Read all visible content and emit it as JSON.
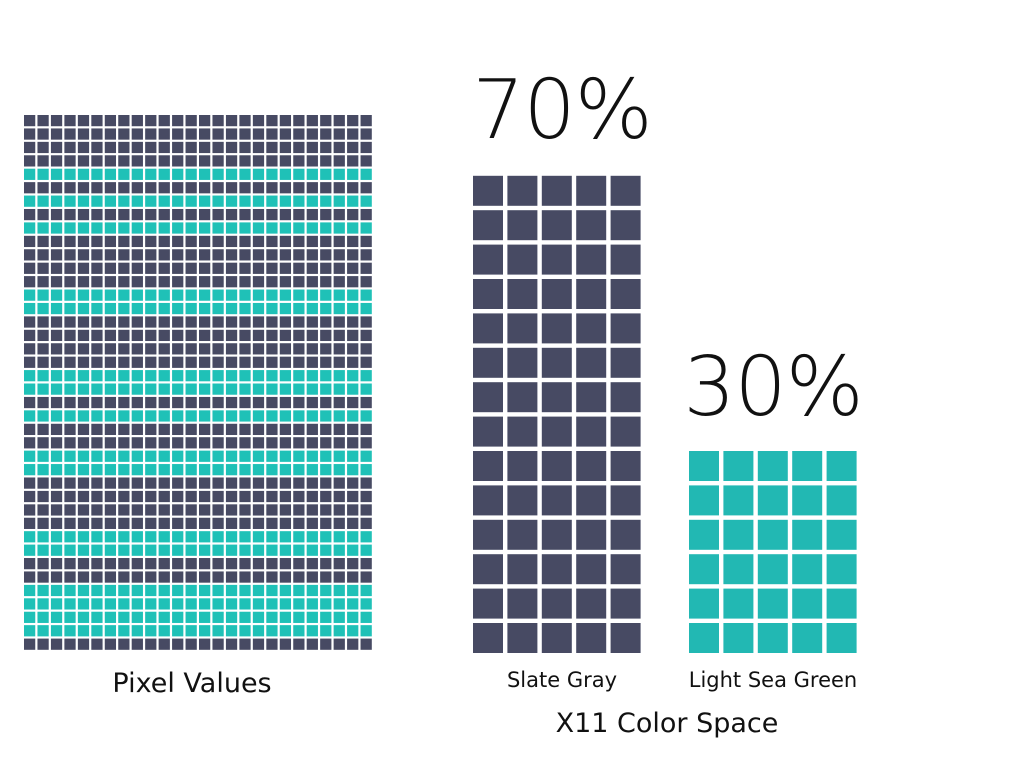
{
  "chart_data": {
    "type": "bar",
    "chart_style": "waffle",
    "title": "",
    "xlabel": "X11 Color Space",
    "ylabel": "",
    "panel_label": "Pixel Values",
    "categories": [
      "Slate Gray",
      "Light Sea Green"
    ],
    "values": [
      70,
      30
    ],
    "value_labels": [
      "70%",
      "30%"
    ],
    "colors": [
      "#474a63",
      "#22b8b3"
    ],
    "waffle_columns": 5,
    "waffle_rows": [
      14,
      6
    ],
    "pixel_grid": {
      "columns": 26,
      "rows": 40,
      "cell_color": "#474a63",
      "stripe_color": "#1fc1b7",
      "stripe_rows": [
        4,
        6,
        8,
        13,
        14,
        19,
        20,
        22,
        25,
        26,
        31,
        32,
        35,
        36,
        37,
        38
      ]
    },
    "grid": false,
    "legend": "none"
  }
}
